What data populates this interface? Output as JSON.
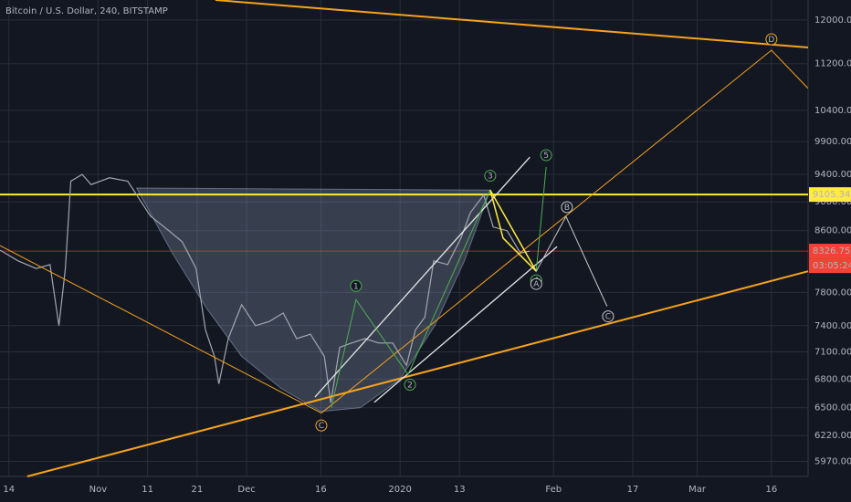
{
  "chart_data": {
    "type": "line",
    "title": "Bitcoin / U.S. Dollar, 240, BITSTAMP",
    "log_scale": true,
    "grid": true,
    "color": "#a3a6af",
    "x": [
      -1.8,
      1.8,
      5.5,
      8.3,
      10.1,
      11.4,
      12.5,
      14.8,
      16.6,
      20.3,
      24,
      25.8,
      28.6,
      32.3,
      35,
      37.8,
      39.7,
      41.5,
      42.4,
      44.3,
      47,
      49.8,
      52.6,
      55.4,
      58.1,
      60.9,
      63.7,
      65,
      66.8,
      69.2,
      71.9,
      74.7,
      77.5,
      80.3,
      82.1,
      84,
      85.8,
      88.6,
      91.3,
      93.2,
      95.9,
      97.8,
      100.6,
      103.3,
      105.2
    ],
    "values": [
      8340,
      8200,
      8100,
      8150,
      7400,
      8100,
      9300,
      9400,
      9250,
      9350,
      9300,
      9100,
      8800,
      8600,
      8450,
      8100,
      7350,
      7050,
      6750,
      7250,
      7650,
      7400,
      7450,
      7550,
      7250,
      7300,
      7050,
      6550,
      7150,
      7200,
      7250,
      7200,
      7200,
      6950,
      7350,
      7500,
      8200,
      8150,
      8500,
      8850,
      9100,
      8650,
      8600,
      8300,
      8326.75
    ],
    "xlim": [
      -1.8,
      161.4
    ],
    "ylim": [
      5830,
      12386
    ],
    "xticks": [
      {
        "value": 0,
        "label": "14"
      },
      {
        "value": 18,
        "label": "Nov"
      },
      {
        "value": 28,
        "label": "11"
      },
      {
        "value": 38,
        "label": "21"
      },
      {
        "value": 48,
        "label": "Dec"
      },
      {
        "value": 63,
        "label": "16"
      },
      {
        "value": 79,
        "label": "2020"
      },
      {
        "value": 91,
        "label": "13"
      },
      {
        "value": 110,
        "label": "Feb"
      },
      {
        "value": 126,
        "label": "17"
      },
      {
        "value": 139,
        "label": "Mar"
      },
      {
        "value": 154,
        "label": "16"
      }
    ],
    "yticks": [
      {
        "value": 12000,
        "label": "12000.00"
      },
      {
        "value": 11200,
        "label": "11200.00"
      },
      {
        "value": 10400,
        "label": "10400.00"
      },
      {
        "value": 9900,
        "label": "9900.00"
      },
      {
        "value": 9400,
        "label": "9400.00"
      },
      {
        "value": 9000,
        "label": "9000.00"
      },
      {
        "value": 8600,
        "label": "8600.00"
      },
      {
        "value": 7800,
        "label": "7800.00"
      },
      {
        "value": 7400,
        "label": "7400.00"
      },
      {
        "value": 7100,
        "label": "7100.00"
      },
      {
        "value": 6800,
        "label": "6800.00"
      },
      {
        "value": 6500,
        "label": "6500.00"
      },
      {
        "value": 6220,
        "label": "6220.00"
      },
      {
        "value": 5970,
        "label": "5970.00"
      }
    ],
    "price_lines": [
      {
        "value": 9105.34,
        "color": "#ffeb3b"
      },
      {
        "value": 8326.75,
        "color": "#f44336"
      }
    ],
    "countdown": "03:05:24",
    "cup": {
      "color": "#8a9ab8",
      "x": [
        25.8,
        33,
        40,
        47,
        55,
        63,
        71,
        79,
        86,
        92,
        97.2
      ],
      "values": [
        9200,
        8300,
        7600,
        7050,
        6700,
        6460,
        6500,
        6800,
        7400,
        8200,
        9170
      ]
    },
    "drawings": [
      {
        "color": "#f7a21b",
        "width": 2,
        "x": [
          41.7,
          161.4
        ],
        "values": [
          12386,
          11490
        ]
      },
      {
        "color": "#f7a21b",
        "width": 2,
        "x": [
          3.7,
          161.4
        ],
        "values": [
          5830,
          8065
        ]
      },
      {
        "color": "#f7a21b",
        "width": 1,
        "x": [
          -1.8,
          63.1,
          154,
          161.4
        ],
        "values": [
          8400,
          6445,
          11440,
          10770
        ]
      },
      {
        "color": "#e6e6e6",
        "width": 1.3,
        "x": [
          61.8,
          105.2
        ],
        "values": [
          6610,
          9660
        ]
      },
      {
        "color": "#e6e6e6",
        "width": 1.3,
        "x": [
          73.8,
          110.7
        ],
        "values": [
          6555,
          8385
        ]
      },
      {
        "color": "#4caf50",
        "width": 1,
        "x": [
          65.1,
          70.1,
          80.6,
          97.2,
          106.5,
          108.5
        ],
        "values": [
          6500,
          7710,
          6850,
          9170,
          8065,
          9510
        ]
      },
      {
        "color": "#ffeb3b",
        "width": 1.5,
        "x": [
          97.2,
          106.5,
          99.8,
          97.2
        ],
        "values": [
          9170,
          8065,
          8500,
          9170
        ]
      },
      {
        "color": "#c8c8c8",
        "width": 1,
        "x": [
          106.5,
          112.5,
          120.8
        ],
        "values": [
          8065,
          8795,
          7630
        ]
      }
    ],
    "wave_labels": [
      {
        "text": "1",
        "x": 70.1,
        "y": 7880,
        "color": "#4caf50"
      },
      {
        "text": "2",
        "x": 81,
        "y": 6740,
        "color": "#4caf50"
      },
      {
        "text": "3",
        "x": 97.2,
        "y": 9380,
        "color": "#4caf50"
      },
      {
        "text": "4",
        "x": 106.5,
        "y": 7950,
        "color": "#4caf50"
      },
      {
        "text": "A",
        "x": 106.5,
        "y": 7905,
        "color": "#c8c8c8"
      },
      {
        "text": "5",
        "x": 108.5,
        "y": 9690,
        "color": "#4caf50"
      },
      {
        "text": "B",
        "x": 112.7,
        "y": 8925,
        "color": "#c8c8c8"
      },
      {
        "text": "C",
        "x": 121,
        "y": 7510,
        "color": "#c8c8c8"
      },
      {
        "text": "C",
        "x": 63.1,
        "y": 6320,
        "color": "#f7a21b"
      },
      {
        "text": "D",
        "x": 154,
        "y": 11640,
        "color": "#f7a21b"
      }
    ]
  }
}
